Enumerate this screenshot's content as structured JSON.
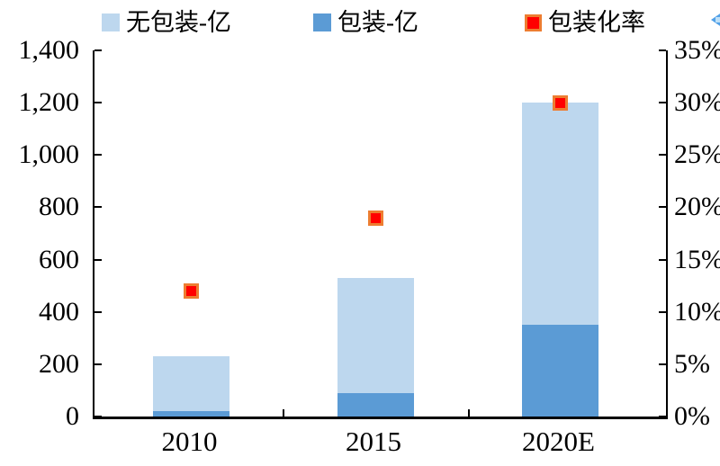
{
  "legend": {
    "items": [
      {
        "label": "无包装-亿",
        "color": "#BDD7EE"
      },
      {
        "label": "包装-亿",
        "color": "#5B9BD5"
      },
      {
        "label": "包装化率",
        "color": "#FF0000",
        "border": "#ED7D31"
      }
    ]
  },
  "icons": {
    "collapse_arrow_color": "#52A1E8"
  },
  "chart_data": {
    "type": "bar",
    "subtype": "stacked-with-scatter-overlay",
    "categories": [
      "2010",
      "2015",
      "2020E"
    ],
    "series": [
      {
        "name": "无包装-亿",
        "type": "bar",
        "stack": "total",
        "axis": "left",
        "values": [
          210,
          440,
          850
        ],
        "color": "#BDD7EE"
      },
      {
        "name": "包装-亿",
        "type": "bar",
        "stack": "total",
        "axis": "left",
        "values": [
          20,
          90,
          350
        ],
        "color": "#5B9BD5"
      },
      {
        "name": "包装化率",
        "type": "scatter",
        "axis": "right",
        "unit": "%",
        "values": [
          12,
          19,
          30
        ],
        "marker": {
          "shape": "square",
          "fill": "#FF0000",
          "border": "#ED7D31"
        }
      }
    ],
    "stacked_totals": [
      230,
      530,
      1200
    ],
    "left_axis": {
      "min": 0,
      "max": 1400,
      "step": 200,
      "tick_labels": [
        "0",
        "200",
        "400",
        "600",
        "800",
        "1,000",
        "1,200",
        "1,400"
      ]
    },
    "right_axis": {
      "min": 0,
      "max": 35,
      "step": 5,
      "tick_labels": [
        "0%",
        "5%",
        "10%",
        "15%",
        "20%",
        "25%",
        "30%",
        "35%"
      ]
    },
    "grid": false,
    "legend_position": "top",
    "title": "",
    "xlabel": "",
    "ylabel": ""
  }
}
